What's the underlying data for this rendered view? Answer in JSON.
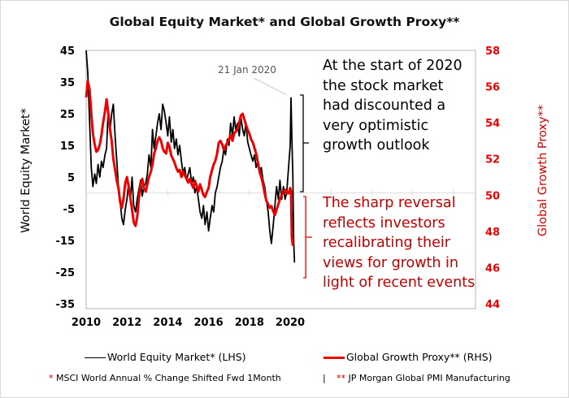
{
  "chart_data": {
    "type": "line",
    "title": "Global Equity Market* and Global Growth Proxy**",
    "xlabel": "",
    "ylabel_left": "World Equity Market*",
    "ylabel_right": "Global Growth Proxy**",
    "xlim": [
      2010,
      2020.3
    ],
    "ylim_left": [
      -35,
      45
    ],
    "ylim_right": [
      44,
      58
    ],
    "x_ticks": [
      "2010",
      "2012",
      "2014",
      "2016",
      "2018",
      "2020"
    ],
    "y_ticks_left": [
      "45",
      "35",
      "25",
      "15",
      "5",
      "-5",
      "-15",
      "-25",
      "-35"
    ],
    "y_ticks_right": [
      "58",
      "56",
      "54",
      "52",
      "50",
      "48",
      "46",
      "44"
    ],
    "grid": false,
    "legend_placement": "bottom",
    "series": [
      {
        "name": "World Equity Market* (LHS)",
        "axis": "left",
        "color": "#000000",
        "x": [
          2010.0,
          2010.08,
          2010.17,
          2010.25,
          2010.33,
          2010.42,
          2010.5,
          2010.58,
          2010.67,
          2010.75,
          2010.83,
          2010.92,
          2011.0,
          2011.08,
          2011.17,
          2011.25,
          2011.33,
          2011.42,
          2011.5,
          2011.58,
          2011.67,
          2011.75,
          2011.83,
          2011.92,
          2012.0,
          2012.08,
          2012.17,
          2012.25,
          2012.33,
          2012.42,
          2012.5,
          2012.58,
          2012.67,
          2012.75,
          2012.83,
          2012.92,
          2013.0,
          2013.08,
          2013.17,
          2013.25,
          2013.33,
          2013.42,
          2013.5,
          2013.58,
          2013.67,
          2013.75,
          2013.83,
          2013.92,
          2014.0,
          2014.08,
          2014.17,
          2014.25,
          2014.33,
          2014.42,
          2014.5,
          2014.58,
          2014.67,
          2014.75,
          2014.83,
          2014.92,
          2015.0,
          2015.08,
          2015.17,
          2015.25,
          2015.33,
          2015.42,
          2015.5,
          2015.58,
          2015.67,
          2015.75,
          2015.83,
          2015.92,
          2016.0,
          2016.08,
          2016.17,
          2016.25,
          2016.33,
          2016.42,
          2016.5,
          2016.58,
          2016.67,
          2016.75,
          2016.83,
          2016.92,
          2017.0,
          2017.08,
          2017.17,
          2017.25,
          2017.33,
          2017.42,
          2017.5,
          2017.58,
          2017.67,
          2017.75,
          2017.83,
          2017.92,
          2018.0,
          2018.08,
          2018.17,
          2018.25,
          2018.33,
          2018.42,
          2018.5,
          2018.58,
          2018.67,
          2018.75,
          2018.83,
          2018.92,
          2019.0,
          2019.08,
          2019.17,
          2019.25,
          2019.33,
          2019.42,
          2019.5,
          2019.58,
          2019.67,
          2019.75,
          2019.83,
          2019.92,
          2020.0,
          2020.04,
          2020.08,
          2020.13,
          2020.17,
          2020.21
        ],
        "values": [
          45,
          38,
          22,
          8,
          2,
          6,
          3,
          9,
          5,
          10,
          8,
          12,
          14,
          26,
          20,
          25,
          28,
          18,
          10,
          2,
          -3,
          -8,
          -10,
          -5,
          -2,
          3,
          -2,
          5,
          -4,
          -6,
          -2,
          1,
          4,
          -1,
          2,
          3,
          6,
          12,
          8,
          20,
          14,
          18,
          22,
          25,
          20,
          28,
          26,
          22,
          18,
          24,
          16,
          20,
          14,
          17,
          12,
          15,
          10,
          6,
          8,
          4,
          6,
          8,
          3,
          5,
          0,
          2,
          -2,
          -6,
          -8,
          -4,
          -10,
          -6,
          -12,
          -8,
          -4,
          -6,
          0,
          2,
          5,
          8,
          10,
          14,
          12,
          17,
          15,
          22,
          18,
          24,
          20,
          22,
          18,
          24,
          20,
          18,
          22,
          16,
          14,
          12,
          10,
          12,
          8,
          10,
          6,
          8,
          4,
          2,
          -2,
          -6,
          -12,
          -16,
          -10,
          -4,
          2,
          -2,
          4,
          -2,
          2,
          -2,
          0,
          8,
          15,
          30,
          18,
          5,
          -15,
          -22
        ]
      },
      {
        "name": "Global Growth Proxy** (RHS)",
        "axis": "right",
        "color": "#ee0000",
        "x": [
          2010.0,
          2010.08,
          2010.17,
          2010.25,
          2010.33,
          2010.42,
          2010.5,
          2010.58,
          2010.67,
          2010.75,
          2010.83,
          2010.92,
          2011.0,
          2011.08,
          2011.17,
          2011.25,
          2011.33,
          2011.42,
          2011.5,
          2011.58,
          2011.67,
          2011.75,
          2011.83,
          2011.92,
          2012.0,
          2012.08,
          2012.17,
          2012.25,
          2012.33,
          2012.42,
          2012.5,
          2012.58,
          2012.67,
          2012.75,
          2012.83,
          2012.92,
          2013.0,
          2013.08,
          2013.17,
          2013.25,
          2013.33,
          2013.42,
          2013.5,
          2013.58,
          2013.67,
          2013.75,
          2013.83,
          2013.92,
          2014.0,
          2014.08,
          2014.17,
          2014.25,
          2014.33,
          2014.42,
          2014.5,
          2014.58,
          2014.67,
          2014.75,
          2014.83,
          2014.92,
          2015.0,
          2015.08,
          2015.17,
          2015.25,
          2015.33,
          2015.42,
          2015.5,
          2015.58,
          2015.67,
          2015.75,
          2015.83,
          2015.92,
          2016.0,
          2016.08,
          2016.17,
          2016.25,
          2016.33,
          2016.42,
          2016.5,
          2016.58,
          2016.67,
          2016.75,
          2016.83,
          2016.92,
          2017.0,
          2017.08,
          2017.17,
          2017.25,
          2017.33,
          2017.42,
          2017.5,
          2017.58,
          2017.67,
          2017.75,
          2017.83,
          2017.92,
          2018.0,
          2018.08,
          2018.17,
          2018.25,
          2018.33,
          2018.42,
          2018.5,
          2018.58,
          2018.67,
          2018.75,
          2018.83,
          2018.92,
          2019.0,
          2019.08,
          2019.17,
          2019.25,
          2019.33,
          2019.42,
          2019.5,
          2019.58,
          2019.67,
          2019.75,
          2019.83,
          2019.92,
          2020.0,
          2020.04,
          2020.08,
          2020.13
        ],
        "values": [
          55.4,
          56.3,
          55.8,
          54.5,
          53.4,
          52.8,
          52.4,
          52.5,
          52.8,
          53.3,
          54.0,
          54.6,
          55.3,
          54.6,
          53.6,
          53.0,
          52.0,
          51.4,
          50.8,
          50.4,
          49.6,
          49.3,
          49.8,
          50.7,
          51.0,
          50.5,
          49.8,
          49.2,
          48.5,
          48.3,
          48.8,
          49.8,
          50.6,
          50.9,
          50.4,
          50.2,
          50.6,
          51.0,
          51.3,
          51.7,
          52.3,
          52.6,
          53.0,
          53.2,
          53.0,
          52.6,
          52.4,
          52.3,
          52.9,
          52.7,
          52.2,
          52.0,
          51.8,
          51.5,
          51.3,
          51.4,
          51.0,
          51.3,
          51.1,
          50.9,
          50.7,
          50.9,
          50.6,
          50.4,
          50.8,
          50.5,
          50.2,
          50.6,
          50.3,
          50.0,
          49.9,
          50.2,
          50.4,
          51.0,
          51.4,
          51.7,
          51.9,
          52.3,
          52.9,
          53.0,
          52.8,
          52.5,
          52.7,
          52.9,
          53.1,
          53.3,
          53.0,
          53.4,
          53.5,
          53.7,
          54.0,
          54.4,
          54.5,
          54.2,
          53.9,
          53.6,
          53.4,
          53.1,
          52.9,
          52.6,
          52.3,
          51.8,
          51.3,
          51.0,
          50.6,
          50.1,
          49.7,
          49.5,
          49.3,
          49.4,
          49.1,
          48.9,
          49.2,
          49.5,
          49.8,
          50.0,
          50.2,
          50.3,
          50.1,
          50.1,
          50.4,
          50.2,
          47.7,
          47.2
        ]
      }
    ],
    "annotations": {
      "date_label": "21 Jan 2020",
      "black_text": [
        "At the start of 2020",
        "the stock market",
        "had discounted a",
        "very optimistic",
        "growth outlook"
      ],
      "red_text": [
        "The sharp reversal",
        "reflects investors",
        "recalibrating their",
        "views for growth in",
        "light of recent events"
      ]
    }
  },
  "legend": {
    "equity": "World Equity Market* (LHS)",
    "growth": "Global Growth Proxy** (RHS)"
  },
  "footnotes": {
    "star1": "*",
    "note1": "MSCI World Annual % Change Shifted Fwd 1Month",
    "separator": "|",
    "star2": "**",
    "note2": "JP Morgan Global PMI Manufacturing"
  },
  "colors": {
    "equity": "#000000",
    "growth": "#ee0000",
    "red_text": "#c00000"
  }
}
